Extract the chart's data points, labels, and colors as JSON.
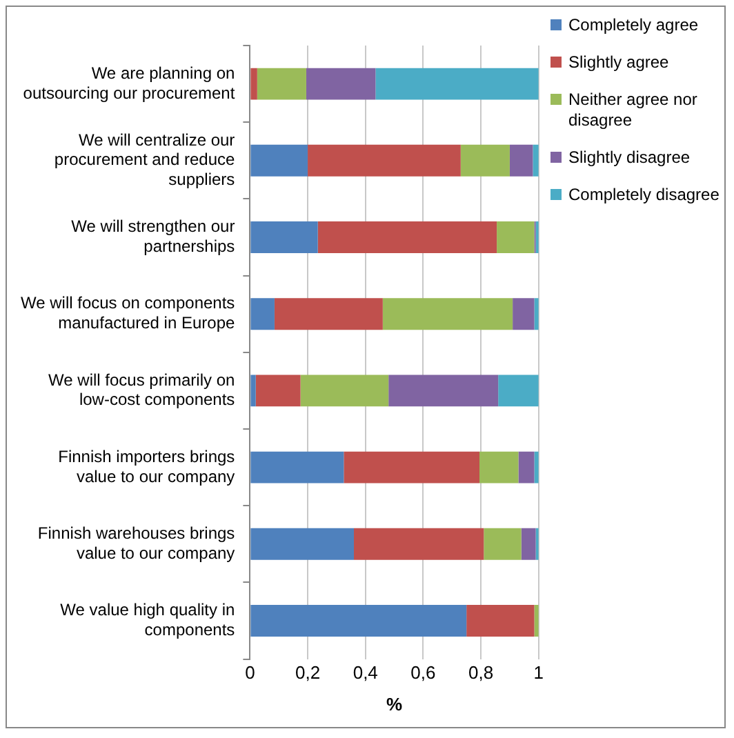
{
  "chart_data": {
    "type": "bar",
    "orientation": "horizontal",
    "stacked": true,
    "xlabel": "%",
    "categories": [
      "We are planning on outsourcing our procurement",
      "We will centralize our procurement and reduce suppliers",
      "We will strengthen our partnerships",
      "We will focus on components manufactured in Europe",
      "We will focus primarily on low-cost components",
      "Finnish importers brings value to our company",
      "Finnish warehouses brings value to our company",
      "We value high quality in components"
    ],
    "series": [
      {
        "name": "Completely agree",
        "color": "#4f81bd",
        "values": [
          0,
          0.2,
          0.235,
          0.085,
          0.02,
          0.325,
          0.36,
          0.75
        ]
      },
      {
        "name": "Slightly agree",
        "color": "#c0504d",
        "values": [
          0.025,
          0.53,
          0.62,
          0.375,
          0.155,
          0.47,
          0.45,
          0.235
        ]
      },
      {
        "name": "Neither agree nor disagree",
        "color": "#9bbb59",
        "values": [
          0.17,
          0.17,
          0.13,
          0.45,
          0.305,
          0.135,
          0.13,
          0.015
        ]
      },
      {
        "name": "Slightly disagree",
        "color": "#8064a2",
        "values": [
          0.24,
          0.08,
          0.005,
          0.075,
          0.38,
          0.055,
          0.05,
          0
        ]
      },
      {
        "name": "Completely disagree",
        "color": "#4bacc6",
        "values": [
          0.565,
          0.02,
          0.01,
          0.015,
          0.14,
          0.015,
          0.01,
          0
        ]
      }
    ],
    "xlim": [
      0,
      1
    ],
    "xticks": [
      0,
      {
        "value": 0.2,
        "label": "0,2"
      },
      {
        "value": 0.4,
        "label": "0,4"
      },
      {
        "value": 0.6,
        "label": "0,6"
      },
      {
        "value": 0.8,
        "label": "0,8"
      },
      1
    ],
    "grid": "x",
    "legend": "right"
  }
}
